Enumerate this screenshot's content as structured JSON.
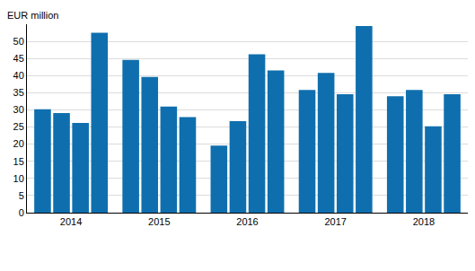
{
  "chart_data": {
    "type": "bar",
    "ylabel": "EUR million",
    "categories": [
      "2014",
      "2015",
      "2016",
      "2017",
      "2018"
    ],
    "series": [
      {
        "color": "#0f6fae",
        "values": [
          30.2,
          44.6,
          19.6,
          35.8,
          34.0
        ]
      },
      {
        "color": "#0f6fae",
        "values": [
          29.1,
          39.6,
          26.7,
          40.8,
          35.8
        ]
      },
      {
        "color": "#0f6fae",
        "values": [
          26.2,
          31.0,
          46.2,
          34.6,
          25.2
        ]
      },
      {
        "color": "#0f6fae",
        "values": [
          52.5,
          27.9,
          41.5,
          54.5,
          34.6
        ]
      }
    ],
    "ylim": [
      0,
      55
    ],
    "yticks": [
      0,
      5,
      10,
      15,
      20,
      25,
      30,
      35,
      40,
      45,
      50
    ],
    "grid": true
  }
}
